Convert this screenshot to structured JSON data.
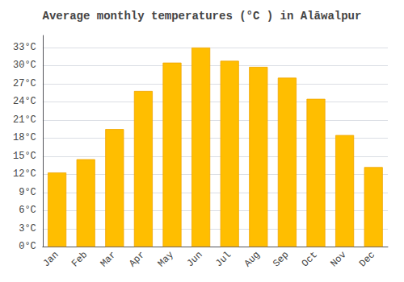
{
  "chart_data": {
    "type": "bar",
    "title": "Average monthly temperatures (°C ) in Alāwalpur",
    "categories": [
      "Jan",
      "Feb",
      "Mar",
      "Apr",
      "May",
      "Jun",
      "Jul",
      "Aug",
      "Sep",
      "Oct",
      "Nov",
      "Dec"
    ],
    "values": [
      12.3,
      14.5,
      19.5,
      25.8,
      30.5,
      33.0,
      30.8,
      29.8,
      28.0,
      24.5,
      18.5,
      13.2
    ],
    "color": "#FFBE00",
    "ylim": [
      0,
      35
    ],
    "yticks": [
      {
        "value": 0,
        "label": "0°C"
      },
      {
        "value": 3,
        "label": "3°C"
      },
      {
        "value": 6,
        "label": "6°C"
      },
      {
        "value": 9,
        "label": "9°C"
      },
      {
        "value": 12,
        "label": "12°C"
      },
      {
        "value": 15,
        "label": "15°C"
      },
      {
        "value": 18,
        "label": "18°C"
      },
      {
        "value": 21,
        "label": "21°C"
      },
      {
        "value": 24,
        "label": "24°C"
      },
      {
        "value": 27,
        "label": "27°C"
      },
      {
        "value": 30,
        "label": "30°C"
      },
      {
        "value": 33,
        "label": "33°C"
      }
    ],
    "grid": true
  }
}
